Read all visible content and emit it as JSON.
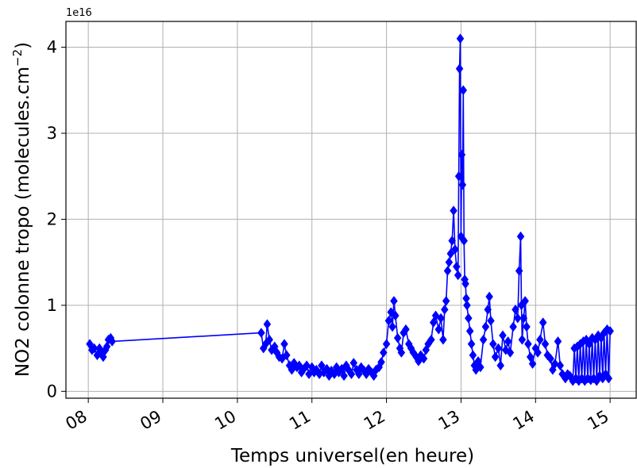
{
  "chart_data": {
    "type": "line",
    "xlabel": "Temps universel(en heure)",
    "ylabel": "NO2 colonne tropo (molecules.cm",
    "ylabel_superscript": "−2",
    "ylabel_close": ")",
    "y_offset_label": "1e16",
    "xlim": [
      7.7,
      15.35
    ],
    "ylim": [
      -0.08,
      4.3
    ],
    "y_scale": 1e+16,
    "grid": true,
    "xticks": [
      {
        "value": 8,
        "label": "08"
      },
      {
        "value": 9,
        "label": "09"
      },
      {
        "value": 10,
        "label": "10"
      },
      {
        "value": 11,
        "label": "11"
      },
      {
        "value": 12,
        "label": "12"
      },
      {
        "value": 13,
        "label": "13"
      },
      {
        "value": 14,
        "label": "14"
      },
      {
        "value": 15,
        "label": "15"
      }
    ],
    "yticks": [
      {
        "value": 0,
        "label": "0"
      },
      {
        "value": 1,
        "label": "1"
      },
      {
        "value": 2,
        "label": "2"
      },
      {
        "value": 3,
        "label": "3"
      },
      {
        "value": 4,
        "label": "4"
      }
    ],
    "series": [
      {
        "color": "#0000ff",
        "marker": "diamond",
        "x": [
          8.02,
          8.05,
          8.08,
          8.12,
          8.15,
          8.18,
          8.2,
          8.23,
          8.25,
          8.27,
          8.3,
          8.32,
          10.32,
          10.35,
          10.38,
          10.4,
          10.43,
          10.46,
          10.5,
          10.53,
          10.56,
          10.6,
          10.63,
          10.66,
          10.7,
          10.73,
          10.76,
          10.8,
          10.83,
          10.86,
          10.9,
          10.93,
          10.96,
          11.0,
          11.03,
          11.06,
          11.1,
          11.13,
          11.16,
          11.2,
          11.23,
          11.26,
          11.3,
          11.33,
          11.36,
          11.4,
          11.43,
          11.46,
          11.5,
          11.53,
          11.56,
          11.6,
          11.63,
          11.66,
          11.7,
          11.73,
          11.76,
          11.8,
          11.83,
          11.86,
          11.9,
          11.93,
          11.96,
          12.0,
          12.03,
          12.06,
          12.08,
          12.1,
          12.12,
          12.15,
          12.18,
          12.2,
          12.23,
          12.26,
          12.3,
          12.33,
          12.36,
          12.4,
          12.43,
          12.46,
          12.5,
          12.53,
          12.56,
          12.6,
          12.63,
          12.66,
          12.7,
          12.73,
          12.76,
          12.78,
          12.8,
          12.82,
          12.84,
          12.86,
          12.88,
          12.9,
          12.92,
          12.94,
          12.96,
          12.97,
          12.98,
          12.99,
          13.0,
          13.01,
          13.02,
          13.03,
          13.04,
          13.05,
          13.06,
          13.07,
          13.08,
          13.1,
          13.12,
          13.14,
          13.16,
          13.18,
          13.2,
          13.23,
          13.26,
          13.3,
          13.33,
          13.36,
          13.38,
          13.4,
          13.43,
          13.46,
          13.5,
          13.53,
          13.56,
          13.6,
          13.63,
          13.66,
          13.7,
          13.73,
          13.76,
          13.78,
          13.8,
          13.81,
          13.82,
          13.84,
          13.86,
          13.88,
          13.9,
          13.93,
          13.96,
          14.0,
          14.03,
          14.06,
          14.1,
          14.13,
          14.16,
          14.2,
          14.23,
          14.26,
          14.3,
          14.33,
          14.36,
          14.4,
          14.43,
          14.46,
          14.5,
          14.52,
          14.54,
          14.56,
          14.58,
          14.6,
          14.62,
          14.64,
          14.66,
          14.68,
          14.7,
          14.72,
          14.74,
          14.76,
          14.78,
          14.8,
          14.82,
          14.84,
          14.86,
          14.88,
          14.9,
          14.92,
          14.94,
          14.96,
          14.98,
          15.0
        ],
        "y": [
          0.55,
          0.48,
          0.5,
          0.42,
          0.5,
          0.45,
          0.4,
          0.48,
          0.52,
          0.6,
          0.62,
          0.58,
          0.68,
          0.5,
          0.55,
          0.78,
          0.6,
          0.48,
          0.52,
          0.45,
          0.4,
          0.38,
          0.55,
          0.42,
          0.3,
          0.25,
          0.33,
          0.28,
          0.3,
          0.22,
          0.27,
          0.3,
          0.2,
          0.28,
          0.22,
          0.25,
          0.2,
          0.3,
          0.22,
          0.26,
          0.18,
          0.24,
          0.2,
          0.28,
          0.22,
          0.26,
          0.18,
          0.3,
          0.24,
          0.2,
          0.33,
          0.25,
          0.2,
          0.28,
          0.24,
          0.2,
          0.26,
          0.22,
          0.18,
          0.25,
          0.28,
          0.34,
          0.45,
          0.55,
          0.82,
          0.92,
          0.75,
          1.05,
          0.88,
          0.62,
          0.5,
          0.45,
          0.68,
          0.72,
          0.55,
          0.5,
          0.45,
          0.4,
          0.35,
          0.42,
          0.38,
          0.48,
          0.55,
          0.6,
          0.8,
          0.88,
          0.72,
          0.85,
          0.6,
          0.95,
          1.05,
          1.4,
          1.5,
          1.6,
          1.75,
          2.1,
          1.65,
          1.45,
          1.35,
          2.5,
          3.75,
          4.1,
          1.8,
          2.75,
          2.4,
          3.5,
          1.75,
          1.3,
          1.25,
          1.08,
          1.0,
          0.85,
          0.7,
          0.55,
          0.42,
          0.3,
          0.25,
          0.35,
          0.28,
          0.6,
          0.75,
          0.95,
          1.1,
          0.82,
          0.55,
          0.4,
          0.5,
          0.3,
          0.65,
          0.48,
          0.58,
          0.45,
          0.75,
          0.95,
          0.85,
          1.4,
          1.8,
          1.0,
          0.6,
          0.85,
          1.05,
          0.75,
          0.55,
          0.4,
          0.32,
          0.5,
          0.45,
          0.6,
          0.8,
          0.55,
          0.42,
          0.38,
          0.25,
          0.32,
          0.58,
          0.3,
          0.2,
          0.15,
          0.2,
          0.18,
          0.12,
          0.5,
          0.15,
          0.52,
          0.12,
          0.55,
          0.15,
          0.58,
          0.12,
          0.6,
          0.15,
          0.55,
          0.13,
          0.62,
          0.15,
          0.6,
          0.12,
          0.65,
          0.18,
          0.62,
          0.15,
          0.68,
          0.2,
          0.72,
          0.15,
          0.7
        ]
      }
    ]
  }
}
